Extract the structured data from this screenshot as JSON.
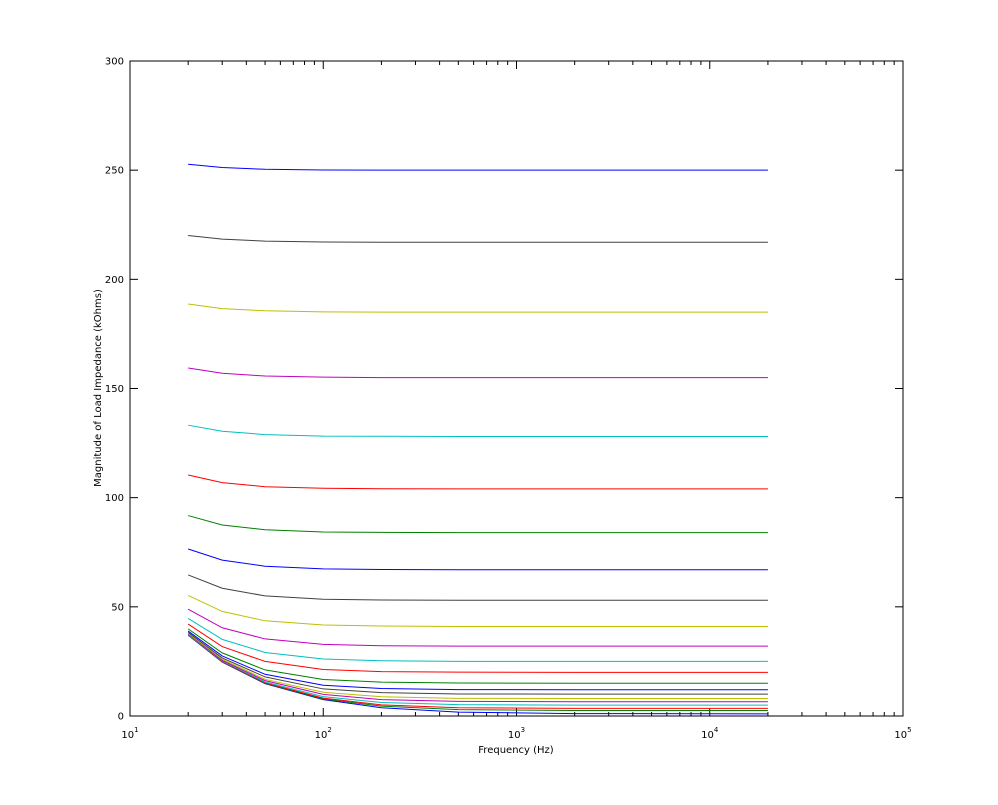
{
  "chart_data": {
    "type": "line",
    "x_label": "Frequency (Hz)",
    "y_label": "Magnitude of Load Impedance (kOhms)",
    "x_scale": "log",
    "minor_ticks": true,
    "grid": false,
    "xlim": [
      10,
      100000
    ],
    "ylim": [
      0,
      300
    ],
    "xticks": [
      {
        "value": 10,
        "label": "10",
        "exponent": "1"
      },
      {
        "value": 100,
        "label": "10",
        "exponent": "2"
      },
      {
        "value": 1000,
        "label": "10",
        "exponent": "3"
      },
      {
        "value": 10000,
        "label": "10",
        "exponent": "4"
      },
      {
        "value": 100000,
        "label": "10",
        "exponent": "5"
      }
    ],
    "yticks": [
      0,
      50,
      100,
      150,
      200,
      250,
      300
    ],
    "x": [
      20,
      30,
      50,
      100,
      200,
      500,
      2000,
      20000
    ],
    "series": [
      {
        "color": "#0000ff",
        "values": [
          37.0,
          24.7,
          14.8,
          7.5,
          3.8,
          1.8,
          1.1,
          1.0
        ]
      },
      {
        "color": "#008000",
        "values": [
          37.1,
          24.8,
          15.0,
          7.8,
          4.5,
          2.9,
          2.5,
          2.5
        ]
      },
      {
        "color": "#ff0000",
        "values": [
          37.2,
          24.9,
          15.2,
          8.2,
          5.1,
          3.8,
          3.5,
          3.5
        ]
      },
      {
        "color": "#00bfbf",
        "values": [
          37.3,
          25.2,
          15.6,
          8.9,
          6.2,
          5.2,
          5.0,
          5.0
        ]
      },
      {
        "color": "#bf00bf",
        "values": [
          37.6,
          25.5,
          16.2,
          9.9,
          7.5,
          6.7,
          6.5,
          6.5
        ]
      },
      {
        "color": "#bfbf00",
        "values": [
          37.9,
          26.0,
          16.8,
          10.9,
          8.8,
          8.1,
          8.0,
          8.0
        ]
      },
      {
        "color": "#404040",
        "values": [
          38.3,
          26.6,
          17.9,
          12.4,
          10.7,
          10.1,
          10.0,
          10.0
        ]
      },
      {
        "color": "#0000ff",
        "values": [
          38.9,
          27.5,
          19.1,
          14.1,
          12.6,
          12.1,
          12.0,
          12.0
        ]
      },
      {
        "color": "#008000",
        "values": [
          39.9,
          28.9,
          21.1,
          16.7,
          15.5,
          15.1,
          15.0,
          15.0
        ]
      },
      {
        "color": "#ff0000",
        "values": [
          42.1,
          31.8,
          25.0,
          21.3,
          20.3,
          20.1,
          20.0,
          20.0
        ]
      },
      {
        "color": "#00bfbf",
        "values": [
          44.7,
          35.1,
          29.1,
          26.1,
          25.3,
          25.0,
          25.0,
          25.0
        ]
      },
      {
        "color": "#bf00bf",
        "values": [
          48.9,
          40.4,
          35.3,
          32.8,
          32.2,
          32.0,
          32.0,
          32.0
        ]
      },
      {
        "color": "#bfbf00",
        "values": [
          55.2,
          47.9,
          43.6,
          41.7,
          41.2,
          41.0,
          41.0,
          41.0
        ]
      },
      {
        "color": "#404040",
        "values": [
          64.6,
          58.5,
          55.0,
          53.5,
          53.1,
          53.0,
          53.0,
          53.0
        ]
      },
      {
        "color": "#0000ff",
        "values": [
          76.5,
          71.4,
          68.6,
          67.4,
          67.1,
          67.0,
          67.0,
          67.0
        ]
      },
      {
        "color": "#008000",
        "values": [
          91.8,
          87.5,
          85.3,
          84.3,
          84.1,
          84.0,
          84.0,
          84.0
        ]
      },
      {
        "color": "#ff0000",
        "values": [
          110.4,
          106.9,
          105.0,
          104.3,
          104.1,
          104.0,
          104.0,
          104.0
        ]
      },
      {
        "color": "#00bfbf",
        "values": [
          133.2,
          130.4,
          128.9,
          128.2,
          128.1,
          128.0,
          128.0,
          128.0
        ]
      },
      {
        "color": "#bf00bf",
        "values": [
          159.4,
          157.0,
          155.7,
          155.2,
          155.0,
          155.0,
          155.0,
          155.0
        ]
      },
      {
        "color": "#bfbf00",
        "values": [
          188.7,
          186.6,
          185.6,
          185.1,
          185.0,
          185.0,
          185.0,
          185.0
        ]
      },
      {
        "color": "#404040",
        "values": [
          220.1,
          218.4,
          217.5,
          217.1,
          217.0,
          217.0,
          217.0,
          217.0
        ]
      },
      {
        "color": "#0000ff",
        "values": [
          252.7,
          251.2,
          250.4,
          250.1,
          250.0,
          250.0,
          250.0,
          250.0
        ]
      }
    ]
  }
}
